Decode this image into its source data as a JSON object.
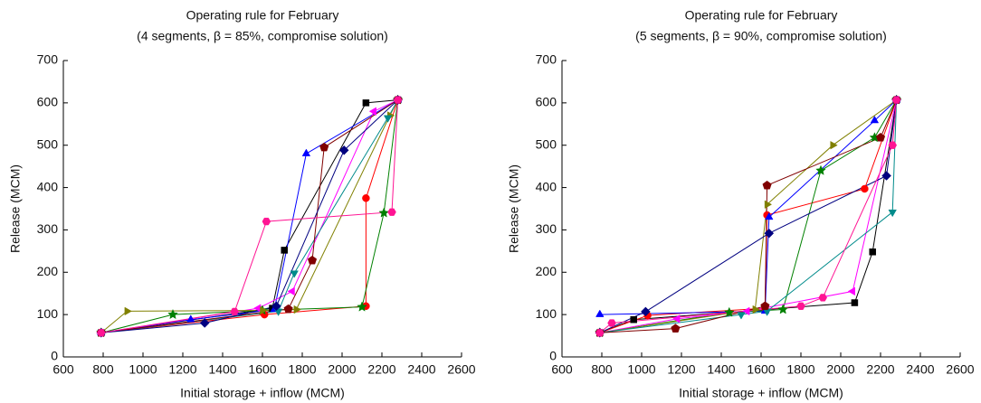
{
  "chart_data": [
    {
      "type": "line",
      "title": "Operating rule for February",
      "subtitle": "(4 segments, β = 85%, compromise solution)",
      "x_label": "Initial storage + inflow (MCM)",
      "y_label": "Release (MCM)",
      "xlim": [
        600,
        2600
      ],
      "xticks": [
        600,
        800,
        1000,
        1200,
        1400,
        1600,
        1800,
        2000,
        2200,
        2400,
        2600
      ],
      "ylim": [
        0,
        700
      ],
      "yticks": [
        0,
        100,
        200,
        300,
        400,
        500,
        600,
        700
      ],
      "series": [
        {
          "color": "#000000",
          "marker": "square",
          "x": [
            790,
            1650,
            1710,
            2120,
            2280
          ],
          "values": [
            57,
            115,
            252,
            600,
            607
          ]
        },
        {
          "color": "#ff0000",
          "marker": "circle",
          "x": [
            790,
            1610,
            2120,
            2120,
            2280
          ],
          "values": [
            57,
            100,
            120,
            375,
            607
          ]
        },
        {
          "color": "#0000ff",
          "marker": "triangle-up",
          "x": [
            790,
            1240,
            1660,
            1820,
            2280
          ],
          "values": [
            57,
            88,
            112,
            480,
            607
          ]
        },
        {
          "color": "#008000",
          "marker": "star",
          "x": [
            790,
            1150,
            1600,
            2100,
            2210,
            2280
          ],
          "values": [
            57,
            100,
            110,
            118,
            340,
            607
          ]
        },
        {
          "color": "#ff00ff",
          "marker": "triangle-left",
          "x": [
            790,
            1580,
            1750,
            2160,
            2280
          ],
          "values": [
            57,
            115,
            155,
            580,
            607
          ]
        },
        {
          "color": "#808000",
          "marker": "triangle-right",
          "x": [
            790,
            920,
            1600,
            1770,
            2240,
            2280
          ],
          "values": [
            57,
            108,
            110,
            112,
            570,
            607
          ]
        },
        {
          "color": "#008b8b",
          "marker": "triangle-down",
          "x": [
            790,
            1680,
            1760,
            2230,
            2280
          ],
          "values": [
            57,
            108,
            198,
            565,
            607
          ]
        },
        {
          "color": "#800000",
          "marker": "pentagon",
          "x": [
            790,
            1730,
            1850,
            1910,
            2280
          ],
          "values": [
            57,
            113,
            228,
            495,
            607
          ]
        },
        {
          "color": "#000080",
          "marker": "diamond",
          "x": [
            790,
            1310,
            1670,
            2010,
            2280
          ],
          "values": [
            57,
            80,
            120,
            488,
            607
          ]
        },
        {
          "color": "#ff1493",
          "marker": "hexagon",
          "x": [
            790,
            1460,
            1620,
            2250,
            2280
          ],
          "values": [
            57,
            107,
            320,
            342,
            607
          ]
        }
      ]
    },
    {
      "type": "line",
      "title": "Operating rule for February",
      "subtitle": "(5 segments, β = 90%, compromise solution)",
      "x_label": "Initial storage + inflow (MCM)",
      "y_label": "Release (MCM)",
      "xlim": [
        600,
        2600
      ],
      "xticks": [
        600,
        800,
        1000,
        1200,
        1400,
        1600,
        1800,
        2000,
        2200,
        2400,
        2600
      ],
      "ylim": [
        0,
        700
      ],
      "yticks": [
        0,
        100,
        200,
        300,
        400,
        500,
        600,
        700
      ],
      "series": [
        {
          "color": "#000000",
          "marker": "square",
          "x": [
            790,
            960,
            2070,
            2160,
            2280
          ],
          "values": [
            57,
            88,
            128,
            248,
            607
          ]
        },
        {
          "color": "#ff0000",
          "marker": "circle",
          "x": [
            790,
            1030,
            1620,
            1630,
            2120,
            2280
          ],
          "values": [
            57,
            98,
            115,
            335,
            397,
            607
          ]
        },
        {
          "color": "#0000ff",
          "marker": "triangle-up",
          "x": [
            790,
            1620,
            1640,
            2170,
            2280
          ],
          "values": [
            100,
            108,
            330,
            558,
            607
          ]
        },
        {
          "color": "#008000",
          "marker": "star",
          "x": [
            790,
            1440,
            1710,
            1900,
            2170,
            2280
          ],
          "values": [
            57,
            105,
            112,
            440,
            518,
            607
          ]
        },
        {
          "color": "#ff00ff",
          "marker": "triangle-left",
          "x": [
            790,
            1180,
            1530,
            2060,
            2280
          ],
          "values": [
            57,
            90,
            108,
            155,
            607
          ]
        },
        {
          "color": "#808000",
          "marker": "triangle-right",
          "x": [
            790,
            1570,
            1630,
            1960,
            2280
          ],
          "values": [
            57,
            112,
            360,
            500,
            607
          ]
        },
        {
          "color": "#008b8b",
          "marker": "triangle-down",
          "x": [
            790,
            1500,
            1630,
            2260,
            2280
          ],
          "values": [
            57,
            100,
            108,
            342,
            607
          ]
        },
        {
          "color": "#800000",
          "marker": "pentagon",
          "x": [
            790,
            1170,
            1620,
            1630,
            2200,
            2280
          ],
          "values": [
            57,
            67,
            120,
            405,
            518,
            607
          ]
        },
        {
          "color": "#000080",
          "marker": "diamond",
          "x": [
            790,
            1020,
            1640,
            2230,
            2280
          ],
          "values": [
            57,
            107,
            292,
            428,
            607
          ]
        },
        {
          "color": "#ff1493",
          "marker": "hexagon",
          "x": [
            790,
            850,
            1800,
            1910,
            2260,
            2280
          ],
          "values": [
            57,
            80,
            120,
            140,
            500,
            607
          ]
        }
      ]
    }
  ]
}
